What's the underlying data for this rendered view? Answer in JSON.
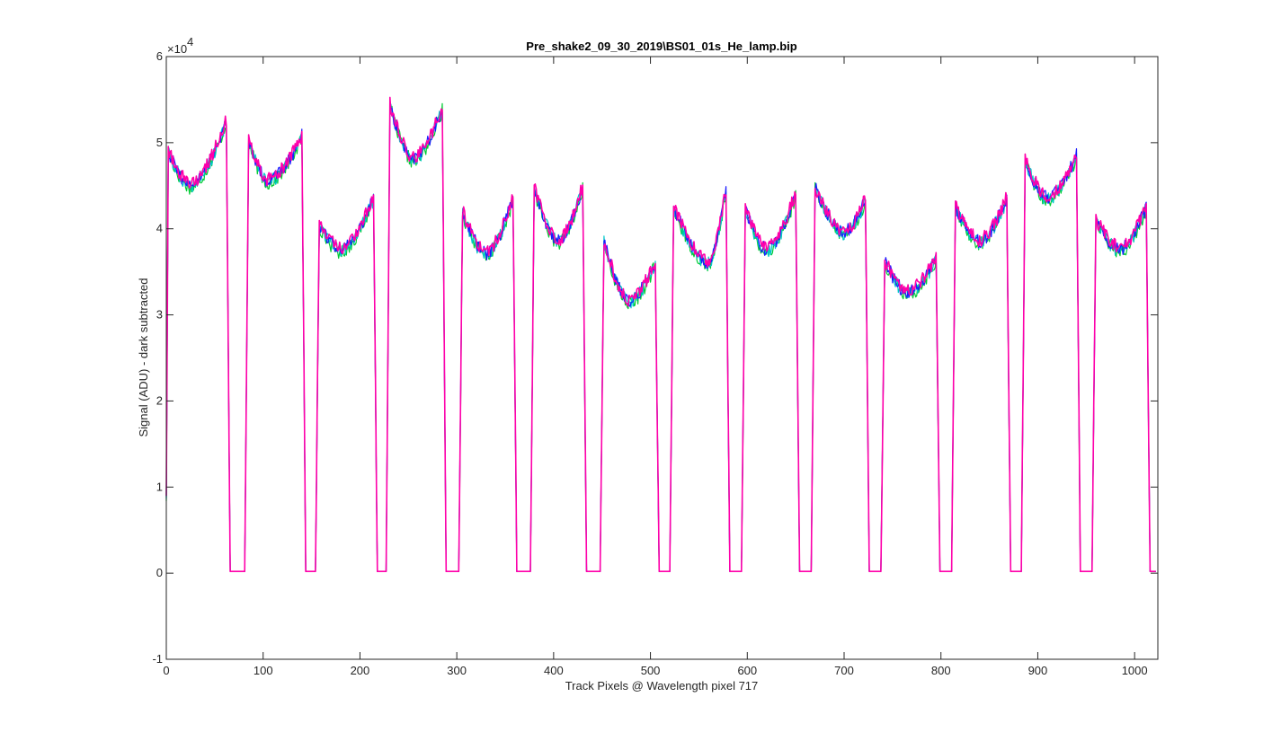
{
  "chart_data": {
    "type": "line",
    "title": "Pre_shake2_09_30_2019\\BS01_01s_He_lamp.bip",
    "xlabel": "Track Pixels @ Wavelength pixel 717",
    "ylabel": "Signal (ADU) - dark subtracted",
    "exponent_label": "×10",
    "exponent_power": "4",
    "xlim": [
      0,
      1024
    ],
    "ylim": [
      -10000,
      60000
    ],
    "x_ticks": [
      0,
      100,
      200,
      300,
      400,
      500,
      600,
      700,
      800,
      900,
      1000
    ],
    "x_tick_labels": [
      "0",
      "100",
      "200",
      "300",
      "400",
      "500",
      "600",
      "700",
      "800",
      "900",
      "1000"
    ],
    "y_ticks": [
      -10000,
      0,
      10000,
      20000,
      30000,
      40000,
      50000,
      60000
    ],
    "y_tick_labels": [
      "-1",
      "0",
      "1",
      "2",
      "3",
      "4",
      "5",
      "6"
    ],
    "grid": false,
    "series_colors": [
      "#00cc33",
      "#00c8c8",
      "#1a1aff",
      "#ff00aa"
    ],
    "segments": [
      {
        "x_start": 2,
        "x_end": 62,
        "start_value": 49000,
        "min_at": 25,
        "min_value": 45000,
        "end_value": 52500
      },
      {
        "x_start": 85,
        "x_end": 140,
        "start_value": 50300,
        "min_at": 105,
        "min_value": 45500,
        "end_value": 50700
      },
      {
        "x_start": 158,
        "x_end": 214,
        "start_value": 40500,
        "min_at": 180,
        "min_value": 37500,
        "end_value": 43500
      },
      {
        "x_start": 231,
        "x_end": 285,
        "start_value": 54500,
        "min_at": 255,
        "min_value": 48000,
        "end_value": 54000
      },
      {
        "x_start": 306,
        "x_end": 358,
        "start_value": 42000,
        "min_at": 330,
        "min_value": 37000,
        "end_value": 43500
      },
      {
        "x_start": 380,
        "x_end": 430,
        "start_value": 44800,
        "min_at": 405,
        "min_value": 38500,
        "end_value": 44800
      },
      {
        "x_start": 452,
        "x_end": 505,
        "start_value": 38500,
        "min_at": 478,
        "min_value": 31500,
        "end_value": 36000
      },
      {
        "x_start": 524,
        "x_end": 578,
        "start_value": 42500,
        "min_at": 560,
        "min_value": 36000,
        "end_value": 44500
      },
      {
        "x_start": 598,
        "x_end": 650,
        "start_value": 42300,
        "min_at": 620,
        "min_value": 37500,
        "end_value": 44000
      },
      {
        "x_start": 670,
        "x_end": 722,
        "start_value": 44800,
        "min_at": 700,
        "min_value": 39500,
        "end_value": 43300
      },
      {
        "x_start": 742,
        "x_end": 795,
        "start_value": 36300,
        "min_at": 765,
        "min_value": 32500,
        "end_value": 36500
      },
      {
        "x_start": 815,
        "x_end": 868,
        "start_value": 42500,
        "min_at": 840,
        "min_value": 38500,
        "end_value": 43500
      },
      {
        "x_start": 887,
        "x_end": 940,
        "start_value": 48000,
        "min_at": 910,
        "min_value": 43500,
        "end_value": 48500
      },
      {
        "x_start": 960,
        "x_end": 1012,
        "start_value": 41000,
        "min_at": 985,
        "min_value": 37500,
        "end_value": 42500
      }
    ],
    "baseline_value": 200
  }
}
